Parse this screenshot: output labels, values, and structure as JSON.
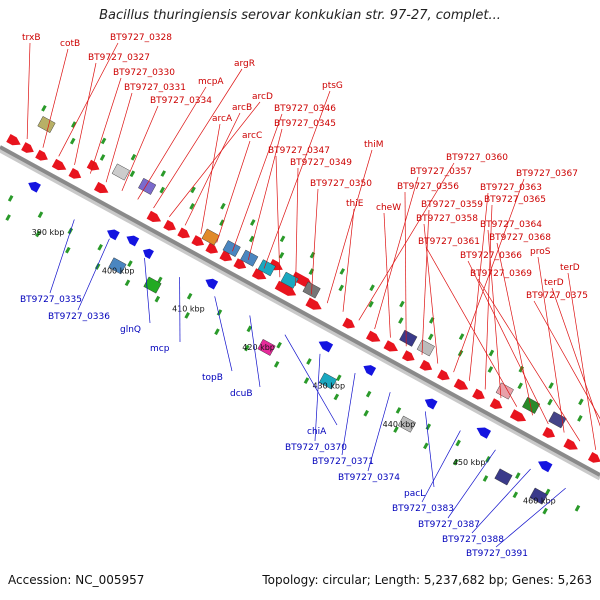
{
  "title": "Bacillus thuringiensis serovar konkukian str. 97-27, complet...",
  "footer": {
    "accession": "Accession: NC_005957",
    "summary": "Topology: circular; Length: 5,237,682 bp; Genes: 5,263"
  },
  "colors": {
    "backbone": "#8a8a8a",
    "label_forward": "#cc0000",
    "label_reverse": "#0000bb",
    "arrow_forward": "#e8141e",
    "arrow_reverse": "#1414e0",
    "tick": "#2a9a2a",
    "leader_forward": "#dd1111",
    "leader_reverse": "#1111cc"
  },
  "scale_labels": [
    "390 kbp",
    "400 kbp",
    "410 kbp",
    "420 kbp",
    "430 kbp",
    "440 kbp",
    "450 kbp",
    "460 kbp"
  ],
  "forward_gene_labels": [
    "trxB",
    "cotB",
    "BT9727_0328",
    "BT9727_0327",
    "BT9727_0330",
    "BT9727_0331",
    "BT9727_0334",
    "mcpA",
    "argR",
    "arcD",
    "arcB",
    "arcA",
    "arcC",
    "BT9727_0346",
    "BT9727_0345",
    "ptsG",
    "BT9727_0347",
    "BT9727_0349",
    "BT9727_0350",
    "thiM",
    "thiE",
    "BT9727_0360",
    "BT9727_0357",
    "cheW",
    "BT9727_0356",
    "BT9727_0359",
    "BT9727_0358",
    "BT9727_0367",
    "BT9727_0363",
    "BT9727_0365",
    "BT9727_0364",
    "BT9727_0361",
    "BT9727_0368",
    "BT9727_0366",
    "proS",
    "BT9727_0369",
    "terD",
    "terD",
    "BT9727_0375"
  ],
  "reverse_gene_labels": [
    "BT9727_0335",
    "BT9727_0336",
    "glnQ",
    "mcp",
    "topB",
    "dcuB",
    "chiA",
    "BT9727_0370",
    "BT9727_0371",
    "BT9727_0374",
    "pacL",
    "BT9727_0383",
    "BT9727_0387",
    "BT9727_0388",
    "BT9727_0391"
  ]
}
